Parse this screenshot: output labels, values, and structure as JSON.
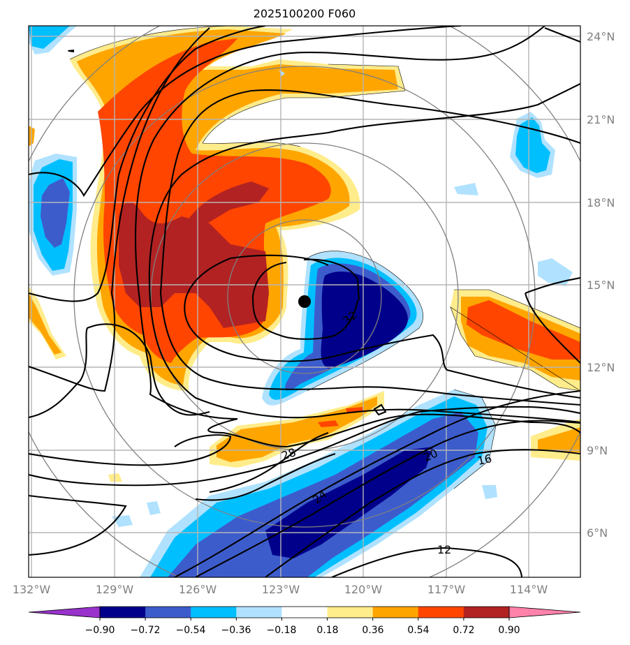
{
  "title": "2025100200 F060",
  "lat_labels": [
    "24°N",
    "21°N",
    "18°N",
    "15°N",
    "12°N",
    "9°N",
    "6°N"
  ],
  "lon_labels": [
    "132°W",
    "129°W",
    "126°W",
    "123°W",
    "120°W",
    "117°W",
    "114°W"
  ],
  "colorbar": {
    "tick_labels": [
      "−0.90",
      "−0.72",
      "−0.54",
      "−0.36",
      "−0.18",
      "0.18",
      "0.36",
      "0.54",
      "0.72",
      "0.90"
    ],
    "colors": [
      "#9932cc",
      "#00008b",
      "#3d5ccc",
      "#00bfff",
      "#b0e2ff",
      "#ffffff",
      "#ffec8b",
      "#ffa500",
      "#ff4500",
      "#b22222",
      "#ff82ab"
    ]
  },
  "contour_labels": [
    "32",
    "28",
    "24",
    "20",
    "16",
    "12"
  ],
  "center_marker": "storm-center-dot"
}
